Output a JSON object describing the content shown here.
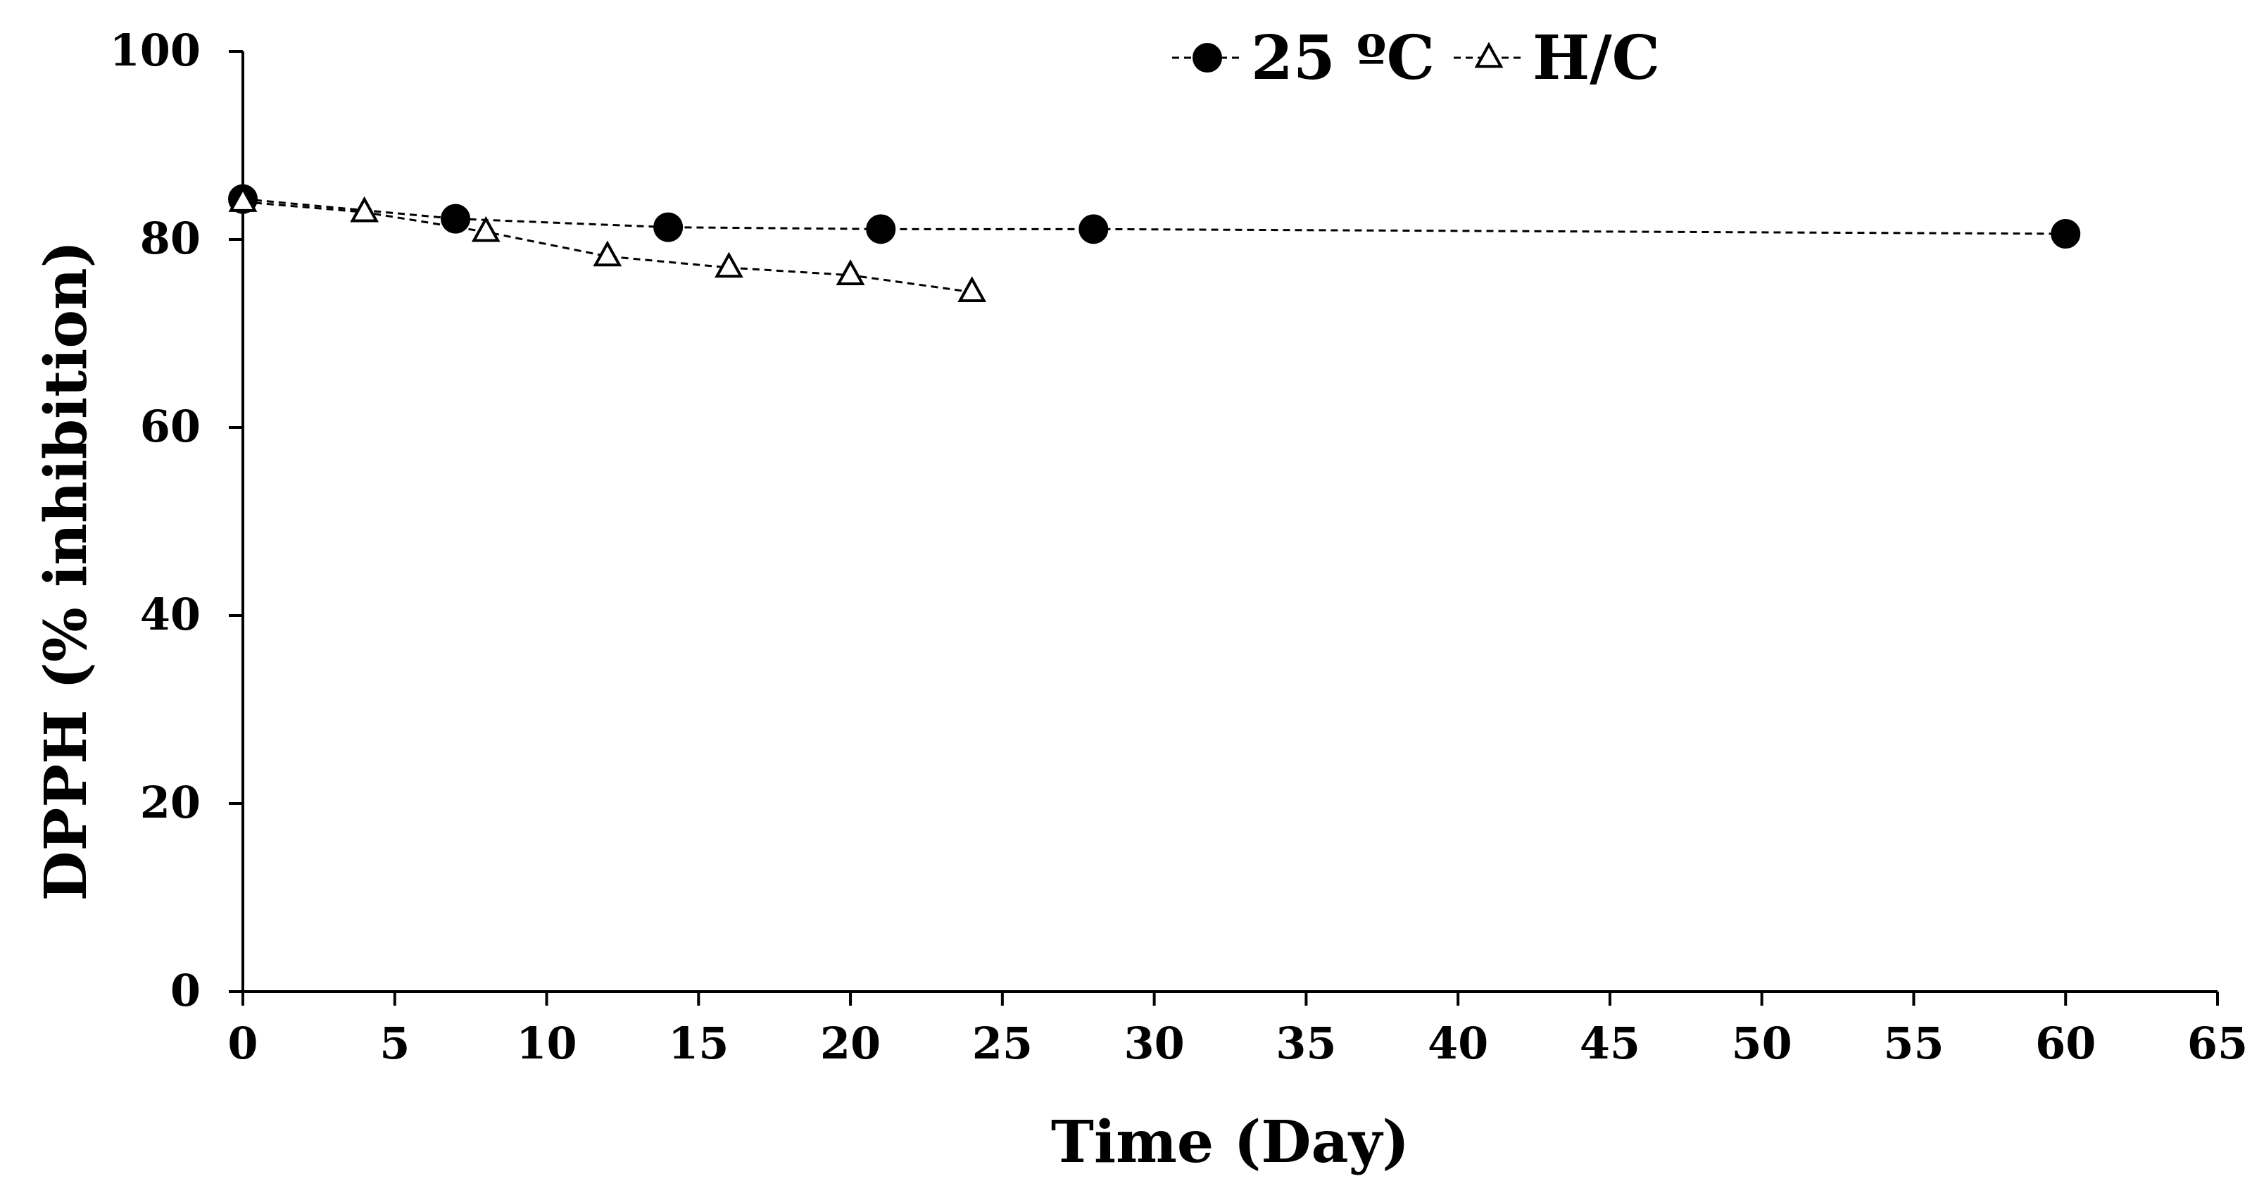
{
  "chart_data": {
    "type": "line",
    "title": "",
    "xlabel": "Time (Day)",
    "ylabel": "DPPH (% inhibition)",
    "xlim": [
      0,
      65
    ],
    "ylim": [
      0,
      100
    ],
    "xticks": [
      0,
      5,
      10,
      15,
      20,
      25,
      30,
      35,
      40,
      45,
      50,
      55,
      60,
      65
    ],
    "yticks": [
      0,
      20,
      40,
      60,
      80,
      100
    ],
    "grid": false,
    "legend_position": "top-right",
    "series": [
      {
        "name": "25 °C",
        "label": "25 ºC",
        "marker": "filled-circle",
        "line_style": "dashed",
        "color": "#000000",
        "x": [
          0,
          7,
          14,
          21,
          28,
          60
        ],
        "y": [
          84.3,
          82.2,
          81.3,
          81.1,
          81.1,
          80.6
        ]
      },
      {
        "name": "H/C",
        "label": "H/C",
        "marker": "open-triangle",
        "line_style": "dashed",
        "color": "#000000",
        "x": [
          0,
          4,
          8,
          12,
          16,
          20,
          24
        ],
        "y": [
          84.0,
          82.9,
          80.8,
          78.2,
          77.0,
          76.2,
          74.4
        ]
      }
    ]
  }
}
